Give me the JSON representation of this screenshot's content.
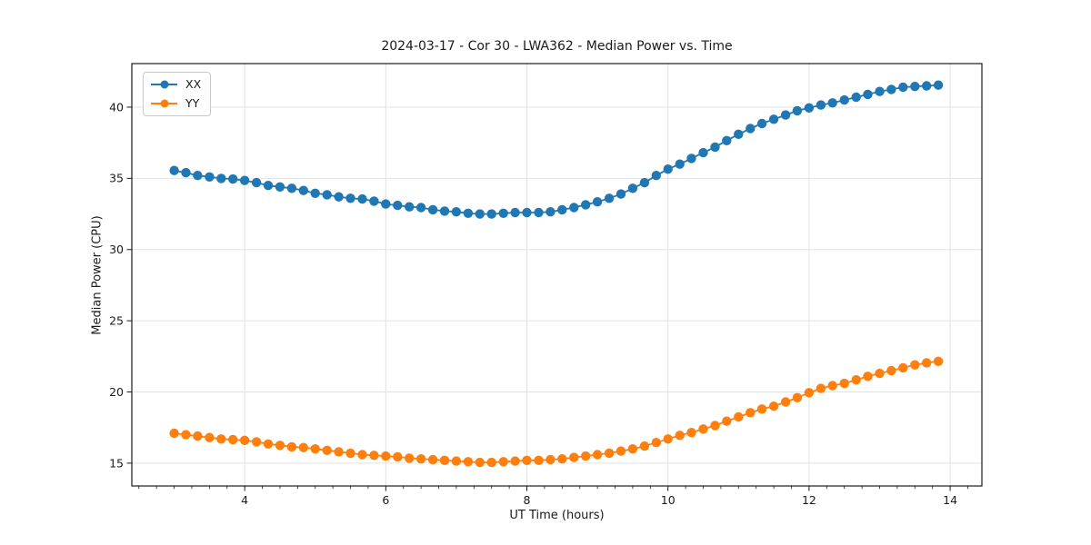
{
  "chart_data": {
    "type": "line",
    "title": "2024-03-17 - Cor 30 - LWA362 - Median Power vs. Time",
    "xlabel": "UT Time (hours)",
    "ylabel": "Median Power (CPU)",
    "xlim": [
      2.4,
      14.45
    ],
    "ylim": [
      13.4,
      43.06
    ],
    "x_ticks": [
      4,
      6,
      8,
      10,
      12,
      14
    ],
    "x_minor_step": 0.25,
    "y_ticks": [
      15,
      20,
      25,
      30,
      35,
      40
    ],
    "grid": true,
    "grid_color": "#e2e2e2",
    "axis_color": "#1a1a1a",
    "legend_position": "upper-left",
    "x": [
      3.0,
      3.167,
      3.333,
      3.5,
      3.667,
      3.833,
      4.0,
      4.167,
      4.333,
      4.5,
      4.667,
      4.833,
      5.0,
      5.167,
      5.333,
      5.5,
      5.667,
      5.833,
      6.0,
      6.167,
      6.333,
      6.5,
      6.667,
      6.833,
      7.0,
      7.167,
      7.333,
      7.5,
      7.667,
      7.833,
      8.0,
      8.167,
      8.333,
      8.5,
      8.667,
      8.833,
      9.0,
      9.167,
      9.333,
      9.5,
      9.667,
      9.833,
      10.0,
      10.167,
      10.333,
      10.5,
      10.667,
      10.833,
      11.0,
      11.167,
      11.333,
      11.5,
      11.667,
      11.833,
      12.0,
      12.167,
      12.333,
      12.5,
      12.667,
      12.833,
      13.0,
      13.167,
      13.333,
      13.5,
      13.667,
      13.833
    ],
    "series": [
      {
        "name": "XX",
        "color": "#1f77b4",
        "values": [
          35.55,
          35.4,
          35.2,
          35.1,
          35.0,
          34.95,
          34.85,
          34.7,
          34.5,
          34.4,
          34.3,
          34.15,
          33.95,
          33.85,
          33.7,
          33.6,
          33.55,
          33.4,
          33.2,
          33.1,
          33.0,
          32.95,
          32.8,
          32.7,
          32.65,
          32.55,
          32.5,
          32.5,
          32.55,
          32.6,
          32.6,
          32.6,
          32.65,
          32.8,
          32.95,
          33.15,
          33.35,
          33.6,
          33.9,
          34.3,
          34.7,
          35.2,
          35.65,
          36.0,
          36.4,
          36.8,
          37.2,
          37.65,
          38.1,
          38.5,
          38.85,
          39.15,
          39.45,
          39.75,
          39.95,
          40.15,
          40.3,
          40.5,
          40.7,
          40.9,
          41.1,
          41.25,
          41.4,
          41.45,
          41.5,
          41.55
        ]
      },
      {
        "name": "YY",
        "color": "#ff7f0e",
        "values": [
          17.1,
          17.0,
          16.9,
          16.8,
          16.7,
          16.65,
          16.6,
          16.5,
          16.35,
          16.25,
          16.15,
          16.1,
          16.0,
          15.9,
          15.8,
          15.7,
          15.6,
          15.55,
          15.5,
          15.45,
          15.35,
          15.3,
          15.25,
          15.2,
          15.15,
          15.1,
          15.05,
          15.05,
          15.1,
          15.15,
          15.2,
          15.2,
          15.25,
          15.3,
          15.4,
          15.5,
          15.6,
          15.7,
          15.85,
          16.0,
          16.2,
          16.45,
          16.7,
          16.95,
          17.15,
          17.4,
          17.65,
          17.95,
          18.25,
          18.55,
          18.8,
          19.0,
          19.3,
          19.6,
          19.95,
          20.25,
          20.45,
          20.6,
          20.85,
          21.1,
          21.3,
          21.5,
          21.7,
          21.9,
          22.05,
          22.15
        ]
      }
    ]
  }
}
